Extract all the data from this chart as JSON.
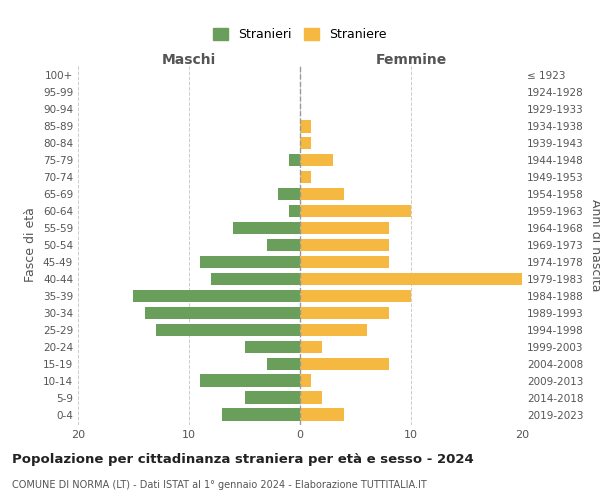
{
  "age_groups": [
    "0-4",
    "5-9",
    "10-14",
    "15-19",
    "20-24",
    "25-29",
    "30-34",
    "35-39",
    "40-44",
    "45-49",
    "50-54",
    "55-59",
    "60-64",
    "65-69",
    "70-74",
    "75-79",
    "80-84",
    "85-89",
    "90-94",
    "95-99",
    "100+"
  ],
  "birth_years": [
    "2019-2023",
    "2014-2018",
    "2009-2013",
    "2004-2008",
    "1999-2003",
    "1994-1998",
    "1989-1993",
    "1984-1988",
    "1979-1983",
    "1974-1978",
    "1969-1973",
    "1964-1968",
    "1959-1963",
    "1954-1958",
    "1949-1953",
    "1944-1948",
    "1939-1943",
    "1934-1938",
    "1929-1933",
    "1924-1928",
    "≤ 1923"
  ],
  "maschi": [
    7,
    5,
    9,
    3,
    5,
    13,
    14,
    15,
    8,
    9,
    3,
    6,
    1,
    2,
    0,
    1,
    0,
    0,
    0,
    0,
    0
  ],
  "femmine": [
    4,
    2,
    1,
    8,
    2,
    6,
    8,
    10,
    20,
    8,
    8,
    8,
    10,
    4,
    1,
    3,
    1,
    1,
    0,
    0,
    0
  ],
  "maschi_color": "#6a9e5b",
  "femmine_color": "#f5b942",
  "bg_color": "#ffffff",
  "grid_color": "#cccccc",
  "title": "Popolazione per cittadinanza straniera per età e sesso - 2024",
  "subtitle": "COMUNE DI NORMA (LT) - Dati ISTAT al 1° gennaio 2024 - Elaborazione TUTTITALIA.IT",
  "legend_maschi": "Stranieri",
  "legend_femmine": "Straniere",
  "xlabel_left": "Maschi",
  "xlabel_right": "Femmine",
  "ylabel_left": "Fasce di età",
  "ylabel_right": "Anni di nascita",
  "xlim": 20
}
